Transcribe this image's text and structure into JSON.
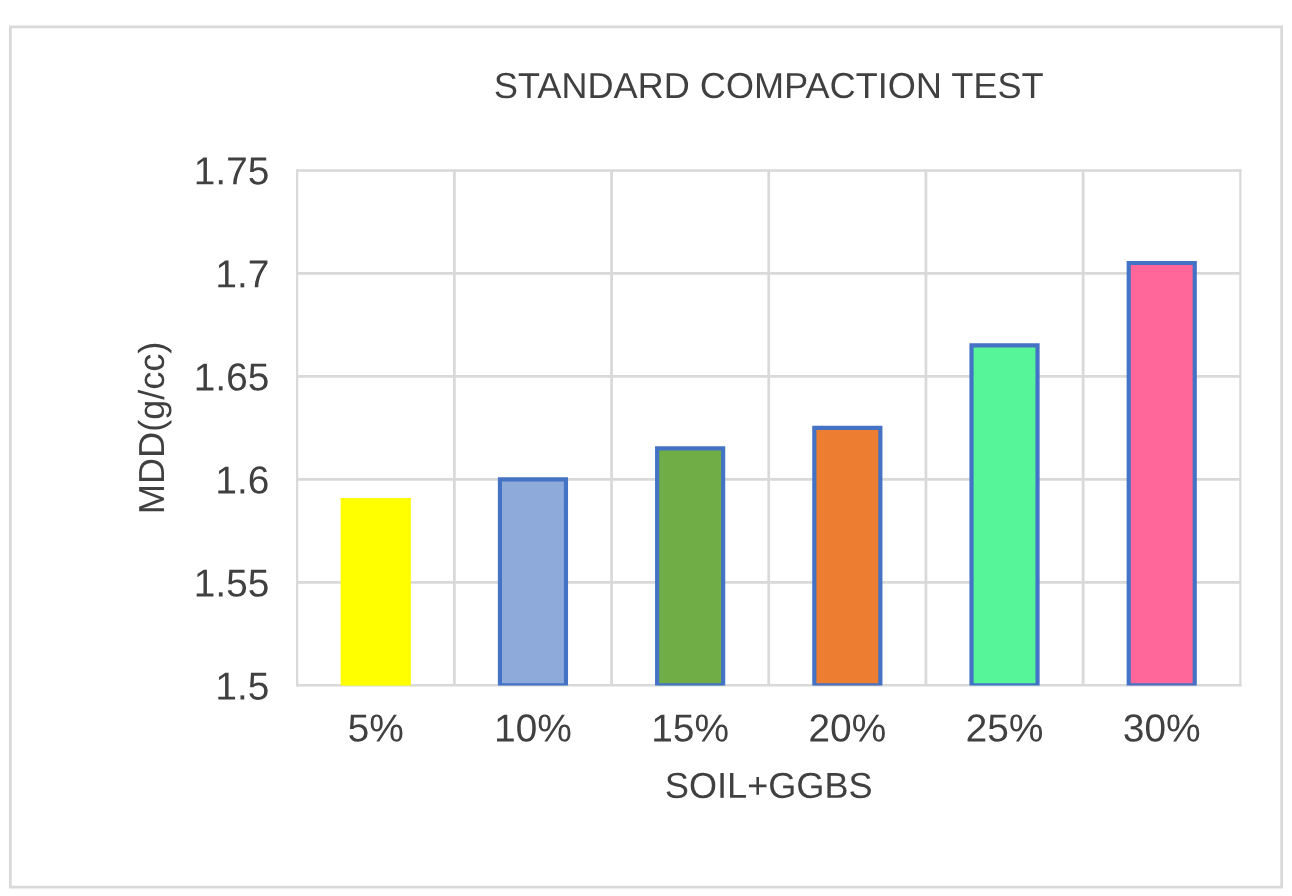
{
  "chart_data": {
    "type": "bar",
    "title": "STANDARD COMPACTION TEST",
    "xlabel": "SOIL+GGBS",
    "ylabel": "MDD(g/cc)",
    "categories": [
      "5%",
      "10%",
      "15%",
      "20%",
      "25%",
      "30%"
    ],
    "values": [
      1.59,
      1.6,
      1.615,
      1.625,
      1.665,
      1.705
    ],
    "colors": [
      "#ffff00",
      "#8eaadb",
      "#70ad47",
      "#ed7d31",
      "#57f59a",
      "#ff6699"
    ],
    "ylim": [
      1.5,
      1.75
    ],
    "yticks": [
      1.5,
      1.55,
      1.6,
      1.65,
      1.7,
      1.75
    ],
    "grid": true
  }
}
